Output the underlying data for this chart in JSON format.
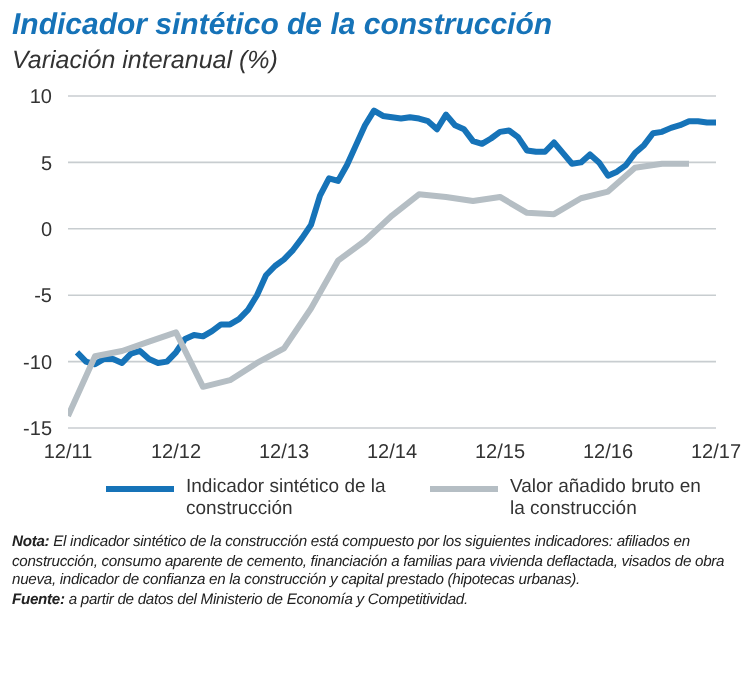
{
  "chart_data": {
    "type": "line",
    "title": "Indicador sintético de la construcción",
    "subtitle": "Variación interanual (%)",
    "xlim": [
      "2011-12",
      "2017-12"
    ],
    "xticks": [
      {
        "value": "2011-12",
        "label": "12/11"
      },
      {
        "value": "2012-12",
        "label": "12/12"
      },
      {
        "value": "2013-12",
        "label": "12/13"
      },
      {
        "value": "2014-12",
        "label": "12/14"
      },
      {
        "value": "2015-12",
        "label": "12/15"
      },
      {
        "value": "2016-12",
        "label": "12/16"
      },
      {
        "value": "2017-12",
        "label": "12/17"
      }
    ],
    "ylim": [
      -15,
      10
    ],
    "yticks": [
      -15,
      -10,
      -5,
      0,
      5,
      10
    ],
    "grid": "y",
    "legend": "bottom",
    "line_style": "solid",
    "series": [
      {
        "name": "Indicador sintético de la construcción",
        "color": "#1673b8",
        "x": [
          "2012-01",
          "2012-02",
          "2012-03",
          "2012-04",
          "2012-05",
          "2012-06",
          "2012-07",
          "2012-08",
          "2012-09",
          "2012-10",
          "2012-11",
          "2012-12",
          "2013-01",
          "2013-02",
          "2013-03",
          "2013-04",
          "2013-05",
          "2013-06",
          "2013-07",
          "2013-08",
          "2013-09",
          "2013-10",
          "2013-11",
          "2013-12",
          "2014-01",
          "2014-02",
          "2014-03",
          "2014-04",
          "2014-05",
          "2014-06",
          "2014-07",
          "2014-08",
          "2014-09",
          "2014-10",
          "2014-11",
          "2014-12",
          "2015-01",
          "2015-02",
          "2015-03",
          "2015-04",
          "2015-05",
          "2015-06",
          "2015-07",
          "2015-08",
          "2015-09",
          "2015-10",
          "2015-11",
          "2015-12",
          "2016-01",
          "2016-02",
          "2016-03",
          "2016-04",
          "2016-05",
          "2016-06",
          "2016-07",
          "2016-08",
          "2016-09",
          "2016-10",
          "2016-11",
          "2016-12",
          "2017-01",
          "2017-02",
          "2017-03",
          "2017-04",
          "2017-05",
          "2017-06",
          "2017-07",
          "2017-08",
          "2017-09",
          "2017-10",
          "2017-11",
          "2017-12"
        ],
        "values": [
          -9.3,
          -10.0,
          -10.2,
          -9.8,
          -9.8,
          -10.1,
          -9.4,
          -9.2,
          -9.8,
          -10.1,
          -10.0,
          -9.3,
          -8.3,
          -8.0,
          -8.1,
          -7.7,
          -7.2,
          -7.2,
          -6.8,
          -6.1,
          -5.0,
          -3.5,
          -2.8,
          -2.3,
          -1.6,
          -0.7,
          0.3,
          2.5,
          3.8,
          3.6,
          4.8,
          6.3,
          7.8,
          8.9,
          8.5,
          8.4,
          8.3,
          8.4,
          8.3,
          8.1,
          7.5,
          8.6,
          7.8,
          7.5,
          6.6,
          6.4,
          6.8,
          7.3,
          7.4,
          6.9,
          5.9,
          5.8,
          5.8,
          6.5,
          5.7,
          4.9,
          5.0,
          5.6,
          5.0,
          4.0,
          4.3,
          4.8,
          5.7,
          6.3,
          7.2,
          7.3,
          7.6,
          7.8,
          8.1,
          8.1,
          8.0,
          8.0
        ]
      },
      {
        "name": "Valor añadido bruto en la construcción",
        "color": "#b5bec4",
        "x": [
          "2011-12",
          "2012-03",
          "2012-06",
          "2012-09",
          "2012-12",
          "2013-03",
          "2013-06",
          "2013-09",
          "2013-12",
          "2014-03",
          "2014-06",
          "2014-09",
          "2014-12",
          "2015-03",
          "2015-06",
          "2015-09",
          "2015-12",
          "2016-03",
          "2016-06",
          "2016-09",
          "2016-12",
          "2017-03",
          "2017-06",
          "2017-09"
        ],
        "values": [
          -14.1,
          -9.6,
          -9.2,
          -8.5,
          -7.8,
          -11.9,
          -11.4,
          -10.1,
          -9.0,
          -6.0,
          -2.4,
          -0.9,
          1.0,
          2.6,
          2.4,
          2.1,
          2.4,
          1.2,
          1.1,
          2.3,
          2.8,
          4.6,
          4.9,
          4.9
        ]
      }
    ],
    "annotations": [
      "Nota: El indicador sintético de la construcción está compuesto por los siguientes indicadores: afiliados en construcción, consumo aparente de cemento, financiación a familias para vivienda deflactada, visados de obra nueva, indicador de confianza en la construcción y capital prestado (hipotecas urbanas).",
      "Fuente: a partir de datos del Ministerio de Economía y Competitividad."
    ]
  }
}
